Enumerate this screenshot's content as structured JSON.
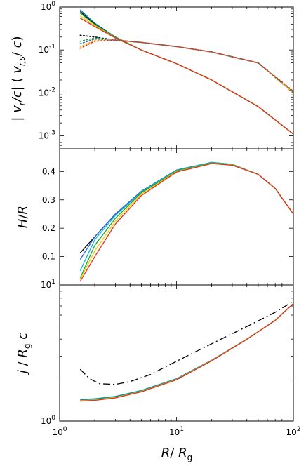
{
  "figure": {
    "colors": [
      "#000000",
      "#00bcd4",
      "#2e5fd6",
      "#23a23a",
      "#f0d000",
      "#e0301e"
    ],
    "xlabel": "R/ R_g",
    "xticks": [
      {
        "v": 1,
        "label": "10",
        "exp": "0"
      },
      {
        "v": 10,
        "label": "10",
        "exp": "1"
      },
      {
        "v": 100,
        "label": "10",
        "exp": "2"
      }
    ]
  },
  "chart_data": [
    {
      "type": "line",
      "panel": "top",
      "ylabel": "| v_r/c| ( v_r,s/ c)",
      "xscale": "log",
      "yscale": "log",
      "xlim": [
        1,
        100
      ],
      "ylim": [
        0.0005,
        1
      ],
      "yticks": [
        {
          "v": 1,
          "label": "10",
          "exp": "0"
        },
        {
          "v": 0.1,
          "label": "10",
          "exp": "-1"
        },
        {
          "v": 0.01,
          "label": "10",
          "exp": "-2"
        },
        {
          "v": 0.001,
          "label": "10",
          "exp": "-3"
        }
      ],
      "series": [
        {
          "color": "#2e5fd6",
          "style": "solid",
          "x": [
            1.5,
            2,
            3,
            5,
            10,
            20,
            50,
            100
          ],
          "y": [
            0.86,
            0.42,
            0.2,
            0.1,
            0.048,
            0.02,
            0.0048,
            0.0011
          ]
        },
        {
          "color": "#00bcd4",
          "style": "solid",
          "x": [
            1.5,
            2,
            3,
            5,
            10,
            20,
            50,
            100
          ],
          "y": [
            0.82,
            0.41,
            0.2,
            0.1,
            0.048,
            0.02,
            0.0048,
            0.0011
          ]
        },
        {
          "color": "#000000",
          "style": "solid",
          "x": [
            1.5,
            2,
            3,
            5,
            10,
            20,
            50,
            100
          ],
          "y": [
            0.78,
            0.4,
            0.2,
            0.1,
            0.048,
            0.02,
            0.0048,
            0.0011
          ]
        },
        {
          "color": "#23a23a",
          "style": "solid",
          "x": [
            1.5,
            2,
            3,
            5,
            10,
            20,
            50,
            100
          ],
          "y": [
            0.72,
            0.39,
            0.2,
            0.1,
            0.048,
            0.02,
            0.0048,
            0.0011
          ]
        },
        {
          "color": "#f0d000",
          "style": "solid",
          "x": [
            1.5,
            2,
            3,
            5,
            10,
            20,
            50,
            100
          ],
          "y": [
            0.62,
            0.37,
            0.19,
            0.1,
            0.048,
            0.02,
            0.0048,
            0.0011
          ]
        },
        {
          "color": "#e0301e",
          "style": "solid",
          "x": [
            1.5,
            2,
            3,
            5,
            10,
            20,
            50,
            100
          ],
          "y": [
            0.55,
            0.35,
            0.19,
            0.1,
            0.048,
            0.02,
            0.0048,
            0.0011
          ]
        },
        {
          "color": "#000000",
          "style": "dotted",
          "x": [
            1.5,
            2,
            3,
            5,
            10,
            20,
            50,
            100
          ],
          "y": [
            0.22,
            0.2,
            0.17,
            0.15,
            0.12,
            0.09,
            0.05,
            0.01
          ]
        },
        {
          "color": "#23a23a",
          "style": "dotted",
          "x": [
            1.5,
            2,
            3,
            5,
            10,
            20,
            50,
            100
          ],
          "y": [
            0.16,
            0.19,
            0.17,
            0.15,
            0.12,
            0.09,
            0.05,
            0.01
          ]
        },
        {
          "color": "#2e5fd6",
          "style": "dotted",
          "x": [
            1.5,
            2,
            3,
            5,
            10,
            20,
            50,
            100
          ],
          "y": [
            0.14,
            0.18,
            0.17,
            0.15,
            0.12,
            0.09,
            0.05,
            0.01
          ]
        },
        {
          "color": "#f0d000",
          "style": "dotted",
          "x": [
            1.5,
            2,
            3,
            5,
            10,
            20,
            50,
            100
          ],
          "y": [
            0.12,
            0.17,
            0.17,
            0.15,
            0.12,
            0.09,
            0.05,
            0.01
          ]
        },
        {
          "color": "#e0301e",
          "style": "dotted",
          "x": [
            1.5,
            2,
            3,
            5,
            10,
            20,
            50,
            100
          ],
          "y": [
            0.11,
            0.16,
            0.17,
            0.15,
            0.12,
            0.09,
            0.05,
            0.011
          ]
        }
      ]
    },
    {
      "type": "line",
      "panel": "middle",
      "ylabel": "H/R",
      "xscale": "log",
      "yscale": "linear",
      "xlim": [
        1,
        100
      ],
      "ylim": [
        0,
        0.48
      ],
      "yticks": [
        {
          "v": 0.1,
          "label": "0.1"
        },
        {
          "v": 0.2,
          "label": "0.2"
        },
        {
          "v": 0.3,
          "label": "0.3"
        },
        {
          "v": 0.4,
          "label": "0.4"
        }
      ],
      "series": [
        {
          "color": "#000000",
          "style": "solid",
          "x": [
            1.5,
            2,
            3,
            5,
            10,
            20,
            30,
            50,
            70,
            100
          ],
          "y": [
            0.113,
            0.17,
            0.25,
            0.33,
            0.405,
            0.432,
            0.425,
            0.39,
            0.34,
            0.25
          ]
        },
        {
          "color": "#2e5fd6",
          "style": "solid",
          "x": [
            1.5,
            2,
            3,
            5,
            10,
            20,
            30,
            50,
            70,
            100
          ],
          "y": [
            0.09,
            0.17,
            0.25,
            0.33,
            0.405,
            0.432,
            0.425,
            0.39,
            0.34,
            0.25
          ]
        },
        {
          "color": "#00bcd4",
          "style": "solid",
          "x": [
            1.5,
            2,
            3,
            5,
            10,
            20,
            30,
            50,
            70,
            100
          ],
          "y": [
            0.05,
            0.16,
            0.245,
            0.328,
            0.404,
            0.432,
            0.425,
            0.39,
            0.34,
            0.25
          ]
        },
        {
          "color": "#23a23a",
          "style": "solid",
          "x": [
            1.5,
            2,
            3,
            5,
            10,
            20,
            30,
            50,
            70,
            100
          ],
          "y": [
            0.025,
            0.14,
            0.235,
            0.325,
            0.402,
            0.43,
            0.424,
            0.39,
            0.34,
            0.25
          ]
        },
        {
          "color": "#f0d000",
          "style": "solid",
          "x": [
            1.5,
            2,
            3,
            5,
            10,
            20,
            30,
            50,
            70,
            100
          ],
          "y": [
            0.02,
            0.12,
            0.225,
            0.32,
            0.4,
            0.428,
            0.423,
            0.39,
            0.34,
            0.25
          ]
        },
        {
          "color": "#e0301e",
          "style": "solid",
          "x": [
            1.5,
            2,
            3,
            5,
            10,
            20,
            30,
            50,
            70,
            100
          ],
          "y": [
            0.013,
            0.1,
            0.215,
            0.315,
            0.398,
            0.428,
            0.422,
            0.39,
            0.34,
            0.25
          ]
        }
      ]
    },
    {
      "type": "line",
      "panel": "bottom",
      "ylabel": "j / R_g c",
      "xscale": "log",
      "yscale": "log",
      "xlim": [
        1,
        100
      ],
      "ylim": [
        1,
        10
      ],
      "yticks": [
        {
          "v": 10,
          "label": "10",
          "exp": "1"
        },
        {
          "v": 1,
          "label": "10",
          "exp": "0"
        }
      ],
      "series": [
        {
          "color": "#000000",
          "style": "dashdot",
          "x": [
            1.5,
            1.8,
            2.2,
            3,
            4,
            6,
            10,
            20,
            40,
            70,
            100
          ],
          "y": [
            2.4,
            2.05,
            1.88,
            1.86,
            1.95,
            2.2,
            2.75,
            3.7,
            4.95,
            6.3,
            7.6
          ]
        },
        {
          "color": "#00bcd4",
          "style": "solid",
          "x": [
            1.5,
            2,
            3,
            5,
            10,
            20,
            40,
            70,
            100
          ],
          "y": [
            1.44,
            1.46,
            1.52,
            1.68,
            2.05,
            2.8,
            4.0,
            5.5,
            7.3
          ]
        },
        {
          "color": "#2e5fd6",
          "style": "solid",
          "x": [
            1.5,
            2,
            3,
            5,
            10,
            20,
            40,
            70,
            100
          ],
          "y": [
            1.43,
            1.45,
            1.51,
            1.67,
            2.04,
            2.8,
            4.0,
            5.5,
            7.3
          ]
        },
        {
          "color": "#23a23a",
          "style": "solid",
          "x": [
            1.5,
            2,
            3,
            5,
            10,
            20,
            40,
            70,
            100
          ],
          "y": [
            1.42,
            1.44,
            1.5,
            1.66,
            2.03,
            2.79,
            4.0,
            5.5,
            7.3
          ]
        },
        {
          "color": "#f0d000",
          "style": "solid",
          "x": [
            1.5,
            2,
            3,
            5,
            10,
            20,
            40,
            70,
            100
          ],
          "y": [
            1.41,
            1.43,
            1.49,
            1.65,
            2.02,
            2.78,
            3.99,
            5.5,
            7.3
          ]
        },
        {
          "color": "#e0301e",
          "style": "solid",
          "x": [
            1.5,
            2,
            3,
            5,
            10,
            20,
            40,
            70,
            100
          ],
          "y": [
            1.4,
            1.42,
            1.48,
            1.64,
            2.01,
            2.77,
            3.98,
            5.5,
            7.3
          ]
        }
      ]
    }
  ]
}
